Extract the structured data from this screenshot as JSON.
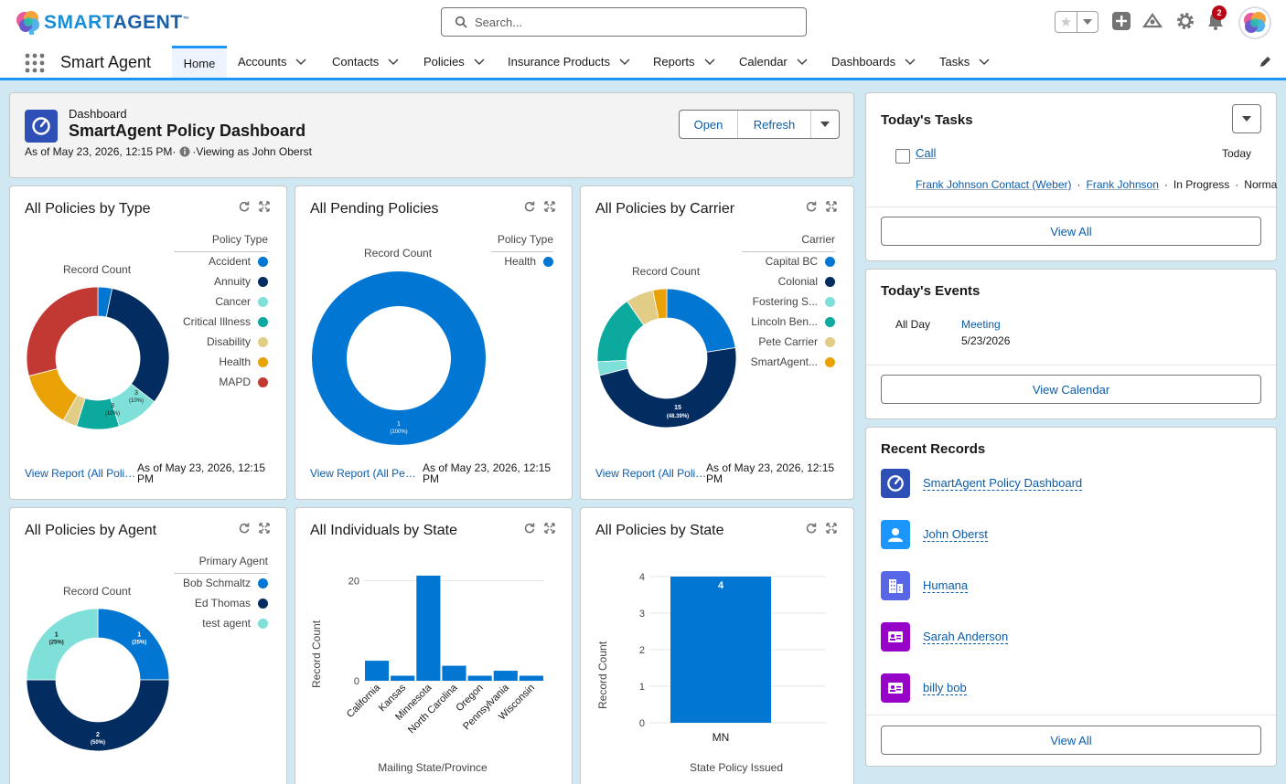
{
  "header": {
    "logo": {
      "smart": "SMART",
      "agent": "AGENT",
      "tm": "™"
    },
    "search_placeholder": "Search...",
    "notification_count": "2"
  },
  "nav": {
    "app_name": "Smart Agent",
    "tabs": [
      "Home",
      "Accounts",
      "Contacts",
      "Policies",
      "Insurance Products",
      "Reports",
      "Calendar",
      "Dashboards",
      "Tasks"
    ]
  },
  "dashboard": {
    "kind": "Dashboard",
    "title": "SmartAgent Policy Dashboard",
    "as_of": "As of May 23, 2026, 12:15 PM·",
    "viewing_as": "·Viewing as John Oberst",
    "open_label": "Open",
    "refresh_label": "Refresh"
  },
  "widgets": {
    "by_type": {
      "title": "All Policies by Type",
      "legend_title": "Policy Type",
      "record_count": "Record Count",
      "view_report": "View Report (All Policies by Type)",
      "as_of": "As of May 23, 2026, 12:15 PM",
      "labels": [
        "3\n(10%)",
        "3\n(10%)"
      ]
    },
    "pending": {
      "title": "All Pending Policies",
      "legend_title": "Policy Type",
      "record_count": "Record Count",
      "view_report": "View Report (All Pending Policies)",
      "as_of": "As of May 23, 2026, 12:15 PM",
      "center_label": "1",
      "center_pct": "(100%)"
    },
    "by_carrier": {
      "title": "All Policies by Carrier",
      "legend_title": "Carrier",
      "record_count": "Record Count",
      "view_report": "View Report (All Policies by Carrier)",
      "as_of": "As of May 23, 2026, 12:15 PM",
      "label_value": "15",
      "label_pct": "(48.39%)"
    },
    "by_agent": {
      "title": "All Policies by Agent",
      "legend_title": "Primary Agent",
      "record_count": "Record Count"
    },
    "ind_state": {
      "title": "All Individuals by State",
      "ylabel": "Record Count",
      "xlabel": "Mailing State/Province"
    },
    "pol_state": {
      "title": "All Policies by State",
      "ylabel": "Record Count",
      "xlabel": "State Policy Issued"
    }
  },
  "chart_data": [
    {
      "type": "pie",
      "title": "All Policies by Type",
      "categories": [
        "Accident",
        "Annuity",
        "Cancer",
        "Critical Illness",
        "Disability",
        "Health",
        "MAPD"
      ],
      "values": [
        1,
        10,
        3,
        3,
        1,
        4,
        9
      ],
      "colors": [
        "#0176d3",
        "#032d60",
        "#7ee0d8",
        "#0ba99e",
        "#e1cd86",
        "#e9a106",
        "#c23934"
      ]
    },
    {
      "type": "pie",
      "title": "All Pending Policies",
      "categories": [
        "Health"
      ],
      "values": [
        1
      ],
      "colors": [
        "#0176d3"
      ]
    },
    {
      "type": "pie",
      "title": "All Policies by Carrier",
      "categories": [
        "Capital BC",
        "Colonial",
        "Fostering S...",
        "Lincoln Ben...",
        "Pete Carrier",
        "SmartAgent..."
      ],
      "values": [
        7,
        15,
        1,
        5,
        2,
        1
      ],
      "colors": [
        "#0176d3",
        "#032d60",
        "#7ee0d8",
        "#0ba99e",
        "#e1cd86",
        "#e9a106"
      ]
    },
    {
      "type": "pie",
      "title": "All Policies by Agent",
      "categories": [
        "Bob Schmaltz",
        "Ed Thomas",
        "test agent"
      ],
      "values": [
        1,
        2,
        1
      ],
      "colors": [
        "#0176d3",
        "#032d60",
        "#7ee0d8"
      ],
      "labels": [
        [
          "1",
          "(25%)"
        ],
        [
          "2",
          "(50%)"
        ],
        [
          "1",
          "(25%)"
        ]
      ]
    },
    {
      "type": "bar",
      "title": "All Individuals by State",
      "categories": [
        "California",
        "Kansas",
        "Minnesota",
        "North Carolina",
        "Oregon",
        "Pennsylvania",
        "Wisconsin"
      ],
      "values": [
        4,
        1,
        21,
        3,
        1,
        2,
        1
      ],
      "yticks": [
        0,
        20
      ],
      "ylim": [
        0,
        21
      ],
      "xlabel": "Mailing State/Province",
      "ylabel": "Record Count",
      "color": "#0176d3"
    },
    {
      "type": "bar",
      "title": "All Policies by State",
      "categories": [
        "MN"
      ],
      "values": [
        4
      ],
      "yticks": [
        0,
        1,
        2,
        3,
        4
      ],
      "ylim": [
        0,
        4
      ],
      "xlabel": "State Policy Issued",
      "ylabel": "Record Count",
      "color": "#0176d3",
      "data_labels": [
        "4"
      ]
    }
  ],
  "tasks": {
    "title": "Today's Tasks",
    "item_subject": "Call",
    "item_due": "Today",
    "item_related": "Frank Johnson Contact (Weber)",
    "item_name": "Frank Johnson",
    "item_status": "In Progress",
    "item_priority": "Norma",
    "view_all": "View All"
  },
  "events": {
    "title": "Today's Events",
    "when": "All Day",
    "name": "Meeting",
    "date": "5/23/2026",
    "view_calendar": "View Calendar"
  },
  "recent": {
    "title": "Recent Records",
    "items": [
      "SmartAgent Policy Dashboard",
      "John Oberst",
      "Humana",
      "Sarah Anderson",
      "billy bob"
    ],
    "view_all": "View All"
  }
}
